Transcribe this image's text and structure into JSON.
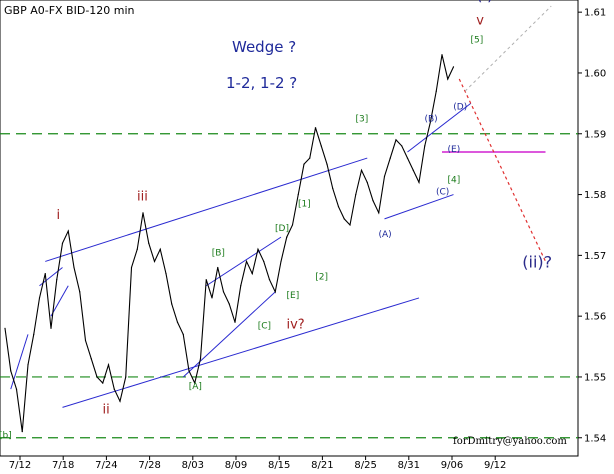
{
  "chart_data": {
    "type": "line",
    "title": "GBP A0-FX BID-120 min",
    "xlabel": "",
    "ylabel": "",
    "ylim": [
      1.537,
      1.612
    ],
    "grid": false,
    "x_ticks": [
      "7/12",
      "7/18",
      "7/24",
      "7/28",
      "8/03",
      "8/09",
      "8/15",
      "8/21",
      "8/25",
      "8/31",
      "9/06",
      "9/12"
    ],
    "y_ticks": [
      "1.61",
      "1.60",
      "1.59",
      "1.58",
      "1.57",
      "1.56",
      "1.55",
      "1.54"
    ],
    "series": [
      {
        "values": [
          [
            0,
            1.558
          ],
          [
            1,
            1.551
          ],
          [
            2,
            1.548
          ],
          [
            3,
            1.541
          ],
          [
            4,
            1.552
          ],
          [
            5,
            1.557
          ],
          [
            6,
            1.563
          ],
          [
            7,
            1.567
          ],
          [
            8,
            1.558
          ],
          [
            9,
            1.566
          ],
          [
            10,
            1.572
          ],
          [
            11,
            1.574
          ],
          [
            12,
            1.568
          ],
          [
            13,
            1.564
          ],
          [
            14,
            1.556
          ],
          [
            15,
            1.553
          ],
          [
            16,
            1.55
          ],
          [
            17,
            1.549
          ],
          [
            18,
            1.552
          ],
          [
            19,
            1.548
          ],
          [
            20,
            1.546
          ],
          [
            21,
            1.55
          ],
          [
            22,
            1.568
          ],
          [
            23,
            1.571
          ],
          [
            24,
            1.577
          ],
          [
            25,
            1.572
          ],
          [
            26,
            1.569
          ],
          [
            27,
            1.571
          ],
          [
            28,
            1.567
          ],
          [
            29,
            1.562
          ],
          [
            30,
            1.559
          ],
          [
            31,
            1.557
          ],
          [
            32,
            1.551
          ],
          [
            33,
            1.549
          ],
          [
            34,
            1.553
          ],
          [
            35,
            1.566
          ],
          [
            36,
            1.563
          ],
          [
            37,
            1.568
          ],
          [
            38,
            1.564
          ],
          [
            39,
            1.562
          ],
          [
            40,
            1.559
          ],
          [
            41,
            1.565
          ],
          [
            42,
            1.569
          ],
          [
            43,
            1.567
          ],
          [
            44,
            1.571
          ],
          [
            45,
            1.569
          ],
          [
            46,
            1.566
          ],
          [
            47,
            1.564
          ],
          [
            48,
            1.569
          ],
          [
            49,
            1.573
          ],
          [
            50,
            1.575
          ],
          [
            51,
            1.58
          ],
          [
            52,
            1.585
          ],
          [
            53,
            1.586
          ],
          [
            54,
            1.591
          ],
          [
            55,
            1.588
          ],
          [
            56,
            1.585
          ],
          [
            57,
            1.581
          ],
          [
            58,
            1.578
          ],
          [
            59,
            1.576
          ],
          [
            60,
            1.575
          ],
          [
            61,
            1.58
          ],
          [
            62,
            1.584
          ],
          [
            63,
            1.582
          ],
          [
            64,
            1.579
          ],
          [
            65,
            1.577
          ],
          [
            66,
            1.583
          ],
          [
            67,
            1.586
          ],
          [
            68,
            1.589
          ],
          [
            69,
            1.588
          ],
          [
            70,
            1.586
          ],
          [
            71,
            1.584
          ],
          [
            72,
            1.582
          ],
          [
            73,
            1.588
          ],
          [
            74,
            1.592
          ],
          [
            75,
            1.597
          ],
          [
            76,
            1.603
          ],
          [
            77,
            1.599
          ],
          [
            78,
            1.601
          ]
        ],
        "color": "#000000"
      }
    ],
    "annotations": {
      "notes": [
        "Wedge ?",
        "1-2, 1-2 ?"
      ],
      "green_labels": [
        {
          "text": "[b]",
          "at": [
            0,
            1.54
          ]
        },
        {
          "text": "[A]",
          "at": [
            33,
            1.548
          ]
        },
        {
          "text": "[B]",
          "at": [
            37,
            1.57
          ]
        },
        {
          "text": "[C]",
          "at": [
            45,
            1.558
          ]
        },
        {
          "text": "[D]",
          "at": [
            48,
            1.574
          ]
        },
        {
          "text": "[E]",
          "at": [
            50,
            1.563
          ]
        },
        {
          "text": "[1]",
          "at": [
            52,
            1.578
          ]
        },
        {
          "text": "[2]",
          "at": [
            55,
            1.566
          ]
        },
        {
          "text": "[3]",
          "at": [
            62,
            1.592
          ]
        },
        {
          "text": "[4]",
          "at": [
            78,
            1.582
          ]
        },
        {
          "text": "[5]",
          "at": [
            82,
            1.605
          ]
        }
      ],
      "blue_labels": [
        {
          "text": "(A)",
          "at": [
            66,
            1.573
          ]
        },
        {
          "text": "(B)",
          "at": [
            74,
            1.592
          ]
        },
        {
          "text": "(C)",
          "at": [
            76,
            1.58
          ]
        },
        {
          "text": "(D)",
          "at": [
            79,
            1.594
          ]
        },
        {
          "text": "(E)",
          "at": [
            78,
            1.587
          ]
        }
      ],
      "red_labels": [
        {
          "text": "i",
          "at": [
            10,
            1.576
          ]
        },
        {
          "text": "ii",
          "at": [
            18,
            1.544
          ]
        },
        {
          "text": "iii",
          "at": [
            24,
            1.579
          ]
        },
        {
          "text": "iv?",
          "at": [
            50,
            1.558
          ]
        },
        {
          "text": "v",
          "at": [
            83,
            1.608
          ]
        }
      ],
      "purple_labels": [
        {
          "text": "(i)?",
          "at": [
            83,
            1.612
          ]
        },
        {
          "text": "(ii)?",
          "at": [
            91,
            1.568
          ]
        }
      ],
      "horizontal_levels": [
        1.59,
        1.55,
        1.54
      ],
      "magenta_level": 1.587,
      "credit": "forDmitry@yahoo.com"
    }
  }
}
